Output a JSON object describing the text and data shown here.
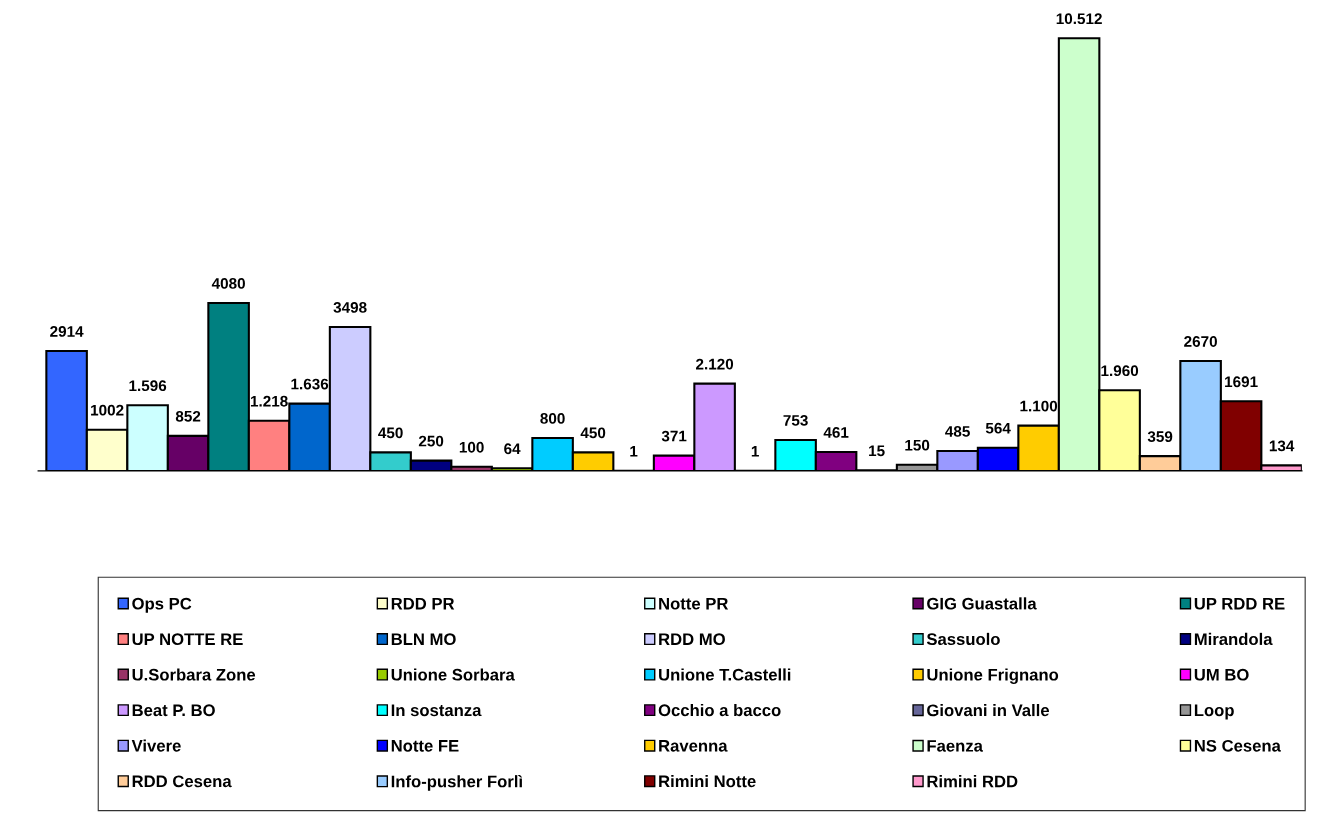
{
  "chart_data": {
    "type": "bar",
    "categories": [
      null
    ],
    "legend": "bottom",
    "series": [
      {
        "name": "Ops PC",
        "color": "#3366ff",
        "values": [
          2914
        ],
        "value_labels": [
          "2914"
        ]
      },
      {
        "name": "RDD PR",
        "color": "#ffffcc",
        "values": [
          1002
        ],
        "value_labels": [
          "1002"
        ]
      },
      {
        "name": "Notte PR",
        "color": "#ccffff",
        "values": [
          1596
        ],
        "value_labels": [
          "1.596"
        ]
      },
      {
        "name": "GIG Guastalla",
        "color": "#660066",
        "values": [
          852
        ],
        "value_labels": [
          "852"
        ]
      },
      {
        "name": "UP RDD RE",
        "color": "#008080",
        "values": [
          4080
        ],
        "value_labels": [
          "4080"
        ]
      },
      {
        "name": "UP NOTTE RE",
        "color": "#ff8080",
        "values": [
          1218
        ],
        "value_labels": [
          "1.218"
        ]
      },
      {
        "name": "BLN MO",
        "color": "#0066cc",
        "values": [
          1636
        ],
        "value_labels": [
          "1.636"
        ]
      },
      {
        "name": "RDD MO",
        "color": "#ccccff",
        "values": [
          3498
        ],
        "value_labels": [
          "3498"
        ]
      },
      {
        "name": "Sassuolo",
        "color": "#33cccc",
        "values": [
          450
        ],
        "value_labels": [
          "450"
        ]
      },
      {
        "name": "Mirandola",
        "color": "#000080",
        "values": [
          250
        ],
        "value_labels": [
          "250"
        ]
      },
      {
        "name": "U.Sorbara Zone",
        "color": "#993366",
        "values": [
          100
        ],
        "value_labels": [
          "100"
        ]
      },
      {
        "name": "Unione Sorbara",
        "color": "#99cc00",
        "values": [
          64
        ],
        "value_labels": [
          "64"
        ]
      },
      {
        "name": "Unione T.Castelli",
        "color": "#00ccff",
        "values": [
          800
        ],
        "value_labels": [
          "800"
        ]
      },
      {
        "name": "Unione Frignano",
        "color": "#ffcc00",
        "values": [
          450
        ],
        "value_labels": [
          "450"
        ]
      },
      {
        "color": "#000000",
        "values": [
          1
        ],
        "value_labels": [
          "1"
        ]
      },
      {
        "name": "UM BO",
        "color": "#ff00ff",
        "values": [
          371
        ],
        "value_labels": [
          "371"
        ]
      },
      {
        "name": "Beat P. BO",
        "color": "#cc99ff",
        "values": [
          2120
        ],
        "value_labels": [
          "2.120"
        ]
      },
      {
        "color": "#000000",
        "values": [
          1
        ],
        "value_labels": [
          "1"
        ]
      },
      {
        "name": "In sostanza",
        "color": "#00ffff",
        "values": [
          753
        ],
        "value_labels": [
          "753"
        ]
      },
      {
        "name": "Occhio a bacco",
        "color": "#800080",
        "values": [
          461
        ],
        "value_labels": [
          "461"
        ]
      },
      {
        "name": "Giovani in Valle",
        "color": "#666699",
        "values": [
          15
        ],
        "value_labels": [
          "15"
        ]
      },
      {
        "name": "Loop",
        "color": "#969696",
        "values": [
          150
        ],
        "value_labels": [
          "150"
        ]
      },
      {
        "name": "Vivere",
        "color": "#9999ff",
        "values": [
          485
        ],
        "value_labels": [
          "485"
        ]
      },
      {
        "name": "Notte FE",
        "color": "#0000ff",
        "values": [
          564
        ],
        "value_labels": [
          "564"
        ]
      },
      {
        "name": "Ravenna",
        "color": "#ffcc00",
        "values": [
          1100
        ],
        "value_labels": [
          "1.100"
        ]
      },
      {
        "name": "Faenza",
        "color": "#ccffcc",
        "values": [
          10512
        ],
        "value_labels": [
          "10.512"
        ]
      },
      {
        "name": "NS Cesena",
        "color": "#ffff99",
        "values": [
          1960
        ],
        "value_labels": [
          "1.960"
        ]
      },
      {
        "name": "RDD Cesena",
        "color": "#ffcc99",
        "values": [
          359
        ],
        "value_labels": [
          "359"
        ]
      },
      {
        "name": "Info-pusher Forlì",
        "color": "#99ccff",
        "values": [
          2670
        ],
        "value_labels": [
          "2670"
        ]
      },
      {
        "name": "Rimini Notte",
        "color": "#800000",
        "values": [
          1691
        ],
        "value_labels": [
          "1691"
        ]
      },
      {
        "name": "Rimini RDD",
        "color": "#ff99cc",
        "values": [
          134
        ],
        "value_labels": [
          "134"
        ]
      }
    ]
  }
}
